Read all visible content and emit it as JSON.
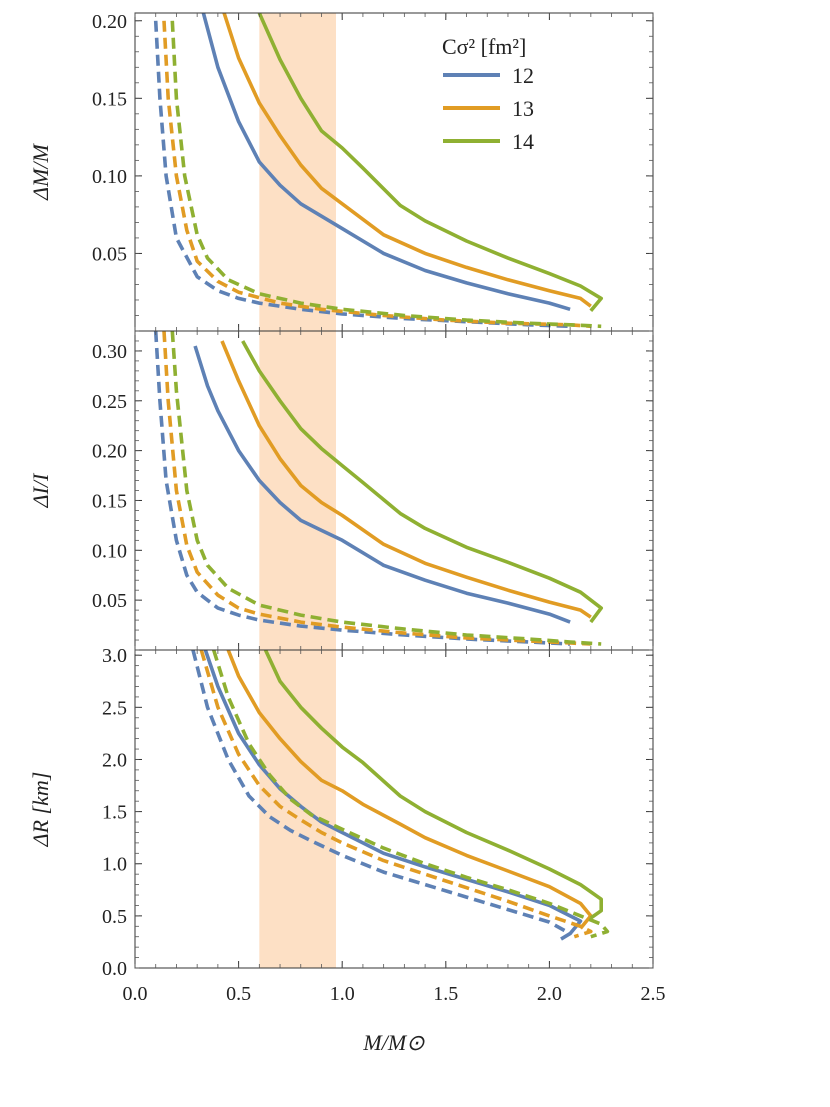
{
  "chart_data": {
    "type": "line",
    "shared_x": {
      "label": "M/M⊙",
      "lim": [
        0.0,
        2.5
      ],
      "ticks": [
        "0.0",
        "0.5",
        "1.0",
        "1.5",
        "2.0",
        "2.5"
      ]
    },
    "band": {
      "x": [
        0.6,
        0.97
      ],
      "color": "#fde0c5"
    },
    "legend": {
      "title": "Cσ² [fm²]",
      "placement": "top-right",
      "entries": [
        "12",
        "13",
        "14"
      ]
    },
    "colors": {
      "12": "#5e81b5",
      "13": "#e19c24",
      "14": "#8fb032"
    },
    "panels": [
      {
        "ylabel": "ΔM/M",
        "ylim": [
          0.0,
          0.205
        ],
        "yticks": [
          "0.05",
          "0.10",
          "0.15",
          "0.20"
        ],
        "series": [
          {
            "name": "12",
            "style": "solid",
            "x": [
              0.33,
              0.4,
              0.5,
              0.6,
              0.7,
              0.8,
              0.9,
              1.0,
              1.2,
              1.4,
              1.6,
              1.8,
              2.0,
              2.1
            ],
            "y": [
              0.205,
              0.17,
              0.135,
              0.109,
              0.094,
              0.082,
              0.074,
              0.066,
              0.05,
              0.039,
              0.031,
              0.024,
              0.018,
              0.014
            ]
          },
          {
            "name": "12",
            "style": "dashed",
            "x": [
              0.1,
              0.12,
              0.15,
              0.2,
              0.3,
              0.4,
              0.5,
              0.6,
              0.8,
              1.0,
              1.3,
              1.6,
              1.9,
              2.1
            ],
            "y": [
              0.2,
              0.15,
              0.1,
              0.06,
              0.035,
              0.026,
              0.021,
              0.018,
              0.014,
              0.011,
              0.008,
              0.006,
              0.004,
              0.003
            ]
          },
          {
            "name": "13",
            "style": "solid",
            "x": [
              0.43,
              0.5,
              0.6,
              0.7,
              0.8,
              0.9,
              1.0,
              1.2,
              1.4,
              1.6,
              1.8,
              2.0,
              2.15,
              2.2
            ],
            "y": [
              0.205,
              0.176,
              0.147,
              0.126,
              0.107,
              0.092,
              0.082,
              0.062,
              0.05,
              0.041,
              0.033,
              0.026,
              0.021,
              0.016
            ]
          },
          {
            "name": "13",
            "style": "dashed",
            "x": [
              0.14,
              0.16,
              0.2,
              0.25,
              0.3,
              0.4,
              0.5,
              0.7,
              0.9,
              1.2,
              1.5,
              1.8,
              2.1,
              2.2
            ],
            "y": [
              0.2,
              0.15,
              0.1,
              0.065,
              0.045,
              0.032,
              0.025,
              0.018,
              0.014,
              0.01,
              0.007,
              0.005,
              0.004,
              0.003
            ]
          },
          {
            "name": "14",
            "style": "solid",
            "x": [
              0.6,
              0.7,
              0.8,
              0.9,
              1.0,
              1.1,
              1.28,
              1.4,
              1.6,
              1.8,
              2.0,
              2.15,
              2.25,
              2.2
            ],
            "y": [
              0.205,
              0.175,
              0.15,
              0.129,
              0.118,
              0.105,
              0.081,
              0.071,
              0.058,
              0.047,
              0.037,
              0.029,
              0.021,
              0.013
            ]
          },
          {
            "name": "14",
            "style": "dashed",
            "x": [
              0.18,
              0.2,
              0.24,
              0.3,
              0.35,
              0.45,
              0.6,
              0.8,
              1.0,
              1.3,
              1.6,
              1.9,
              2.1,
              2.25
            ],
            "y": [
              0.2,
              0.15,
              0.1,
              0.062,
              0.047,
              0.033,
              0.024,
              0.018,
              0.014,
              0.01,
              0.007,
              0.005,
              0.004,
              0.003
            ]
          }
        ]
      },
      {
        "ylabel": "ΔI/I",
        "ylim": [
          0.0,
          0.32
        ],
        "yticks": [
          "0.05",
          "0.10",
          "0.15",
          "0.20",
          "0.25",
          "0.30"
        ],
        "series": [
          {
            "name": "12",
            "style": "solid",
            "x": [
              0.29,
              0.35,
              0.4,
              0.5,
              0.6,
              0.7,
              0.8,
              0.9,
              1.0,
              1.2,
              1.4,
              1.6,
              1.8,
              2.0,
              2.1
            ],
            "y": [
              0.305,
              0.265,
              0.24,
              0.2,
              0.17,
              0.148,
              0.13,
              0.12,
              0.11,
              0.085,
              0.07,
              0.057,
              0.047,
              0.036,
              0.028
            ]
          },
          {
            "name": "12",
            "style": "dashed",
            "x": [
              0.1,
              0.12,
              0.15,
              0.2,
              0.25,
              0.3,
              0.4,
              0.5,
              0.6,
              0.8,
              1.0,
              1.3,
              1.6,
              1.9,
              2.1
            ],
            "y": [
              0.32,
              0.25,
              0.17,
              0.11,
              0.075,
              0.058,
              0.042,
              0.035,
              0.03,
              0.024,
              0.02,
              0.015,
              0.011,
              0.008,
              0.006
            ]
          },
          {
            "name": "13",
            "style": "solid",
            "x": [
              0.42,
              0.5,
              0.6,
              0.7,
              0.8,
              0.9,
              1.0,
              1.2,
              1.4,
              1.6,
              1.8,
              2.0,
              2.15,
              2.2
            ],
            "y": [
              0.31,
              0.27,
              0.225,
              0.192,
              0.165,
              0.148,
              0.135,
              0.106,
              0.087,
              0.073,
              0.06,
              0.048,
              0.04,
              0.033
            ]
          },
          {
            "name": "13",
            "style": "dashed",
            "x": [
              0.14,
              0.16,
              0.2,
              0.25,
              0.3,
              0.4,
              0.5,
              0.6,
              0.8,
              1.0,
              1.3,
              1.6,
              1.9,
              2.1,
              2.2
            ],
            "y": [
              0.32,
              0.25,
              0.16,
              0.105,
              0.078,
              0.055,
              0.042,
              0.036,
              0.028,
              0.023,
              0.017,
              0.012,
              0.009,
              0.007,
              0.006
            ]
          },
          {
            "name": "14",
            "style": "solid",
            "x": [
              0.52,
              0.6,
              0.7,
              0.8,
              0.9,
              1.0,
              1.1,
              1.28,
              1.4,
              1.6,
              1.8,
              2.0,
              2.15,
              2.25,
              2.2
            ],
            "y": [
              0.31,
              0.28,
              0.25,
              0.222,
              0.202,
              0.185,
              0.168,
              0.137,
              0.122,
              0.103,
              0.088,
              0.072,
              0.058,
              0.042,
              0.028
            ]
          },
          {
            "name": "14",
            "style": "dashed",
            "x": [
              0.18,
              0.2,
              0.25,
              0.3,
              0.35,
              0.45,
              0.6,
              0.8,
              1.0,
              1.3,
              1.6,
              1.9,
              2.1,
              2.25
            ],
            "y": [
              0.32,
              0.26,
              0.16,
              0.11,
              0.085,
              0.062,
              0.045,
              0.035,
              0.028,
              0.021,
              0.015,
              0.011,
              0.008,
              0.006
            ]
          }
        ]
      },
      {
        "ylabel": "ΔR [km]",
        "ylim": [
          0.0,
          3.05
        ],
        "yticks": [
          "0.0",
          "0.5",
          "1.0",
          "1.5",
          "2.0",
          "2.5",
          "3.0"
        ],
        "series": [
          {
            "name": "12",
            "style": "solid",
            "x": [
              0.34,
              0.4,
              0.5,
              0.6,
              0.7,
              0.8,
              0.9,
              1.0,
              1.2,
              1.4,
              1.6,
              1.8,
              2.0,
              2.15,
              2.1
            ],
            "y": [
              3.05,
              2.7,
              2.25,
              1.95,
              1.72,
              1.55,
              1.4,
              1.3,
              1.1,
              0.97,
              0.85,
              0.73,
              0.6,
              0.45,
              0.33
            ]
          },
          {
            "name": "12",
            "style": "dashed",
            "x": [
              0.28,
              0.35,
              0.45,
              0.55,
              0.65,
              0.75,
              0.85,
              1.0,
              1.2,
              1.4,
              1.6,
              1.8,
              2.0,
              2.1,
              2.05
            ],
            "y": [
              3.05,
              2.5,
              2.0,
              1.65,
              1.45,
              1.32,
              1.22,
              1.08,
              0.92,
              0.8,
              0.68,
              0.56,
              0.44,
              0.33,
              0.27
            ]
          },
          {
            "name": "13",
            "style": "solid",
            "x": [
              0.45,
              0.5,
              0.6,
              0.7,
              0.8,
              0.9,
              1.0,
              1.1,
              1.28,
              1.4,
              1.6,
              1.8,
              2.0,
              2.15,
              2.2,
              2.15
            ],
            "y": [
              3.05,
              2.8,
              2.45,
              2.2,
              1.98,
              1.8,
              1.7,
              1.57,
              1.38,
              1.25,
              1.08,
              0.93,
              0.78,
              0.62,
              0.5,
              0.38
            ]
          },
          {
            "name": "13",
            "style": "dashed",
            "x": [
              0.32,
              0.4,
              0.5,
              0.6,
              0.7,
              0.8,
              0.9,
              1.0,
              1.2,
              1.4,
              1.6,
              1.8,
              2.0,
              2.15,
              2.2,
              2.12
            ],
            "y": [
              3.05,
              2.5,
              2.05,
              1.75,
              1.55,
              1.42,
              1.3,
              1.2,
              1.03,
              0.9,
              0.77,
              0.64,
              0.5,
              0.4,
              0.35,
              0.3
            ]
          },
          {
            "name": "14",
            "style": "solid",
            "x": [
              0.63,
              0.7,
              0.8,
              0.9,
              1.0,
              1.1,
              1.28,
              1.4,
              1.6,
              1.8,
              2.0,
              2.15,
              2.25,
              2.25,
              2.2
            ],
            "y": [
              3.05,
              2.75,
              2.5,
              2.3,
              2.12,
              1.97,
              1.65,
              1.5,
              1.3,
              1.13,
              0.95,
              0.8,
              0.66,
              0.55,
              0.48
            ]
          },
          {
            "name": "14",
            "style": "dashed",
            "x": [
              0.38,
              0.45,
              0.55,
              0.65,
              0.75,
              0.85,
              1.0,
              1.2,
              1.4,
              1.6,
              1.8,
              2.0,
              2.15,
              2.25,
              2.28,
              2.2
            ],
            "y": [
              3.05,
              2.6,
              2.15,
              1.85,
              1.62,
              1.47,
              1.33,
              1.15,
              1.0,
              0.87,
              0.75,
              0.62,
              0.5,
              0.42,
              0.35,
              0.3
            ]
          }
        ]
      }
    ]
  }
}
